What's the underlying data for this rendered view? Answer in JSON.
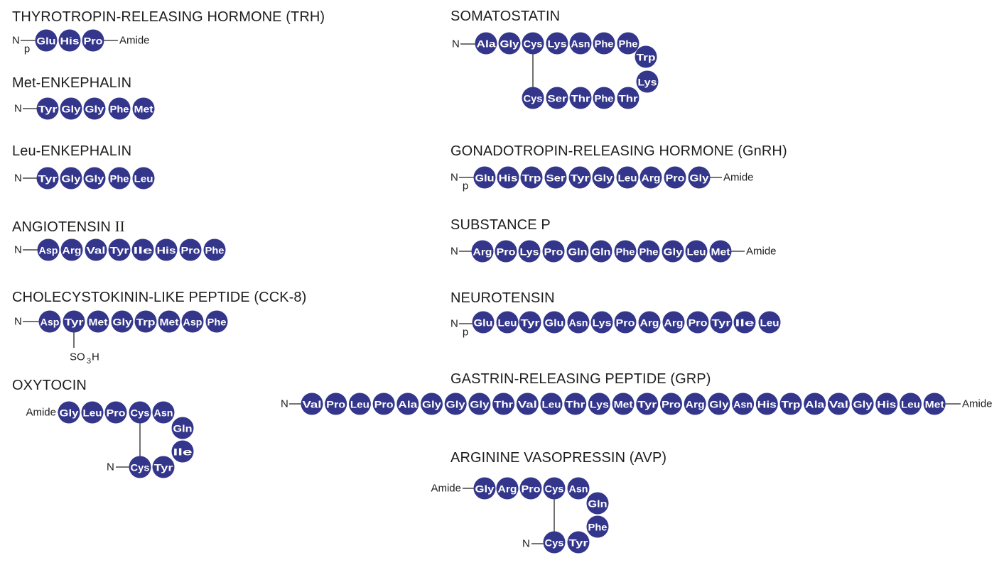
{
  "labels": {
    "n": "N",
    "amide": "Amide",
    "p": "p",
    "so3h": "SO",
    "so3h_sub": "3",
    "so3h_end": "H"
  },
  "colors": {
    "residue_fill": "#33368a",
    "residue_text": "#ffffff",
    "line": "#222222",
    "text": "#1e1e1e"
  },
  "peptides": [
    {
      "id": "trh",
      "title": "THYROTROPIN-RELEASING HORMONE (TRH)",
      "residues": [
        "Glu",
        "His",
        "Pro"
      ]
    },
    {
      "id": "met-enkephalin",
      "title": "Met-ENKEPHALIN",
      "residues": [
        "Tyr",
        "Gly",
        "Gly",
        "Phe",
        "Met"
      ]
    },
    {
      "id": "leu-enkephalin",
      "title": "Leu-ENKEPHALIN",
      "residues": [
        "Tyr",
        "Gly",
        "Gly",
        "Phe",
        "Leu"
      ]
    },
    {
      "id": "angiotensin",
      "title": "ANGIOTENSIN ",
      "title_suffix": "II",
      "residues": [
        "Asp",
        "Arg",
        "Val",
        "Tyr",
        "Ile",
        "His",
        "Pro",
        "Phe"
      ]
    },
    {
      "id": "cck8",
      "title": "CHOLECYSTOKININ-LIKE PEPTIDE (CCK-8)",
      "residues": [
        "Asp",
        "Tyr",
        "Met",
        "Gly",
        "Trp",
        "Met",
        "Asp",
        "Phe"
      ]
    },
    {
      "id": "oxytocin",
      "title": "OXYTOCIN",
      "residues": [
        "Gly",
        "Leu",
        "Pro",
        "Cys",
        "Asn",
        "Gln",
        "Ile",
        "Tyr",
        "Cys"
      ]
    },
    {
      "id": "somatostatin",
      "title": "SOMATOSTATIN",
      "residues": [
        "Ala",
        "Gly",
        "Cys",
        "Lys",
        "Asn",
        "Phe",
        "Phe",
        "Trp",
        "Lys",
        "Thr",
        "Phe",
        "Thr",
        "Ser",
        "Cys"
      ]
    },
    {
      "id": "gnrh",
      "title": "GONADOTROPIN-RELEASING HORMONE (GnRH)",
      "residues": [
        "Glu",
        "His",
        "Trp",
        "Ser",
        "Tyr",
        "Gly",
        "Leu",
        "Arg",
        "Pro",
        "Gly"
      ]
    },
    {
      "id": "substance-p",
      "title": "SUBSTANCE P",
      "residues": [
        "Arg",
        "Pro",
        "Lys",
        "Pro",
        "Gln",
        "Gln",
        "Phe",
        "Phe",
        "Gly",
        "Leu",
        "Met"
      ]
    },
    {
      "id": "neurotensin",
      "title": "NEUROTENSIN",
      "residues": [
        "Glu",
        "Leu",
        "Tyr",
        "Glu",
        "Asn",
        "Lys",
        "Pro",
        "Arg",
        "Arg",
        "Pro",
        "Tyr",
        "Ile",
        "Leu"
      ]
    },
    {
      "id": "grp",
      "title": "GASTRIN-RELEASING PEPTIDE (GRP)",
      "residues": [
        "Val",
        "Pro",
        "Leu",
        "Pro",
        "Ala",
        "Gly",
        "Gly",
        "Gly",
        "Thr",
        "Val",
        "Leu",
        "Thr",
        "Lys",
        "Met",
        "Tyr",
        "Pro",
        "Arg",
        "Gly",
        "Asn",
        "His",
        "Trp",
        "Ala",
        "Val",
        "Gly",
        "His",
        "Leu",
        "Met"
      ]
    },
    {
      "id": "avp",
      "title": "ARGININE VASOPRESSIN (AVP)",
      "residues": [
        "Gly",
        "Arg",
        "Pro",
        "Cys",
        "Asn",
        "Gln",
        "Phe",
        "Tyr",
        "Cys"
      ]
    }
  ]
}
